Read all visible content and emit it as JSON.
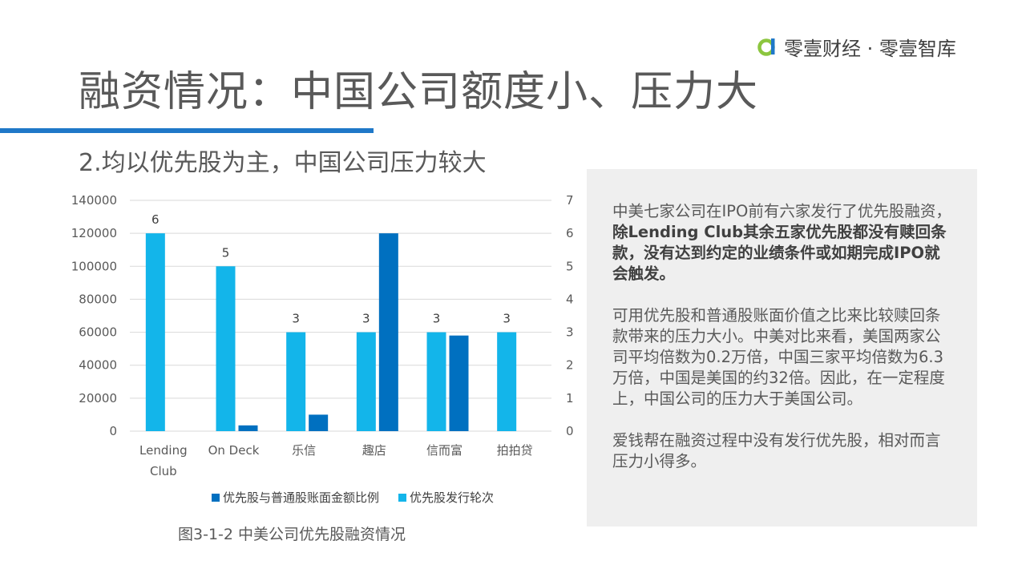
{
  "logo": {
    "icon": "zero-one-logo-icon",
    "text": "零壹财经 · 零壹智库",
    "color": "#8cc63f"
  },
  "slide": {
    "title": "融资情况：中国公司额度小、压力大",
    "subtitle": "2.均以优先股为主，中国公司压力较大",
    "caption": "图3-1-2 中美公司优先股融资情况"
  },
  "chart_data": {
    "type": "bar",
    "categories": [
      "Lending Club",
      "On Deck",
      "乐信",
      "趣店",
      "信而富",
      "拍拍贷"
    ],
    "series": [
      {
        "name": "优先股发行轮次",
        "axis": "right",
        "color": "#13b5ea",
        "values": [
          6,
          5,
          3,
          3,
          3,
          3
        ],
        "data_labels": [
          "6",
          "5",
          "3",
          "3",
          "3",
          "3"
        ]
      },
      {
        "name": "优先股与普通股账面金额比例",
        "axis": "left",
        "color": "#0070c0",
        "values": [
          0,
          3500,
          10000,
          120000,
          58000,
          0
        ]
      }
    ],
    "y_left_ticks": [
      "0",
      "20000",
      "40000",
      "60000",
      "80000",
      "100000",
      "120000",
      "140000"
    ],
    "y_right_ticks": [
      "0",
      "1",
      "2",
      "3",
      "4",
      "5",
      "6",
      "7"
    ],
    "ylim_left": [
      0,
      140000
    ],
    "ylim_right": [
      0,
      7
    ],
    "grid": true,
    "legend_position": "bottom",
    "legend": [
      "优先股与普通股账面金额比例",
      "优先股发行轮次"
    ]
  },
  "side_text": {
    "p1_normal": "中美七家公司在IPO前有六家发行了优先股融资，",
    "p1_bold": "除Lending Club其余五家优先股都没有赎回条款，没有达到约定的业绩条件或如期完成IPO就会触发。",
    "p2": "可用优先股和普通股账面价值之比来比较赎回条款带来的压力大小。中美对比来看，美国两家公司平均倍数为0.2万倍，中国三家平均倍数为6.3万倍，中国是美国的约32倍。因此，在一定程度上，中国公司的压力大于美国公司。",
    "p3": "爱钱帮在融资过程中没有发行优先股，相对而言压力小得多。"
  }
}
